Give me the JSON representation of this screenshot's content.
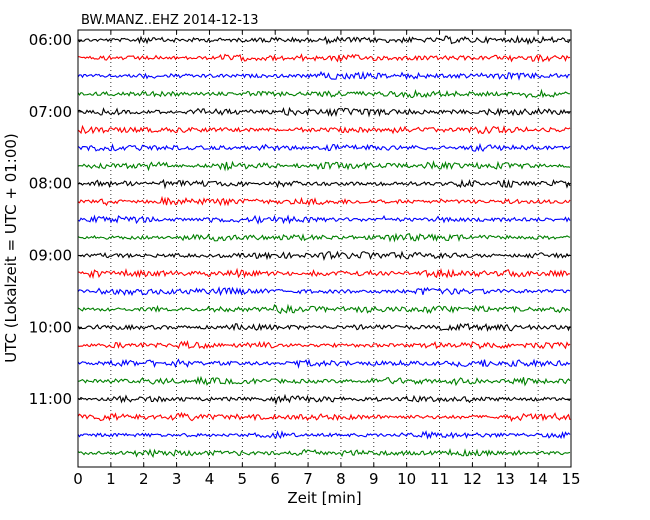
{
  "chart_data": {
    "type": "line",
    "title": "BW.MANZ..EHZ 2014-12-13",
    "xlabel": "Zeit  [min]",
    "ylabel": "UTC (Lokalzeit = UTC + 01:00)",
    "xlim": [
      0,
      15
    ],
    "x_ticks": [
      0,
      1,
      2,
      3,
      4,
      5,
      6,
      7,
      8,
      9,
      10,
      11,
      12,
      13,
      14,
      15
    ],
    "x_tick_labels": [
      "0",
      "1",
      "2",
      "3",
      "4",
      "5",
      "6",
      "7",
      "8",
      "9",
      "10",
      "11",
      "12",
      "13",
      "14",
      "15"
    ],
    "y_tick_labels": [
      "06:00",
      "07:00",
      "08:00",
      "09:00",
      "10:00",
      "11:00"
    ],
    "grid": "vertical dotted",
    "trace_minutes": 15,
    "traces_per_hour": 4,
    "trace_start_times": [
      "06:00",
      "06:15",
      "06:30",
      "06:45",
      "07:00",
      "07:15",
      "07:30",
      "07:45",
      "08:00",
      "08:15",
      "08:30",
      "08:45",
      "09:00",
      "09:15",
      "09:30",
      "09:45",
      "10:00",
      "10:15",
      "10:30",
      "10:45",
      "11:00",
      "11:15",
      "11:30",
      "11:45"
    ],
    "series_colors": [
      "#000000",
      "#ff0000",
      "#0000ff",
      "#008000"
    ]
  }
}
